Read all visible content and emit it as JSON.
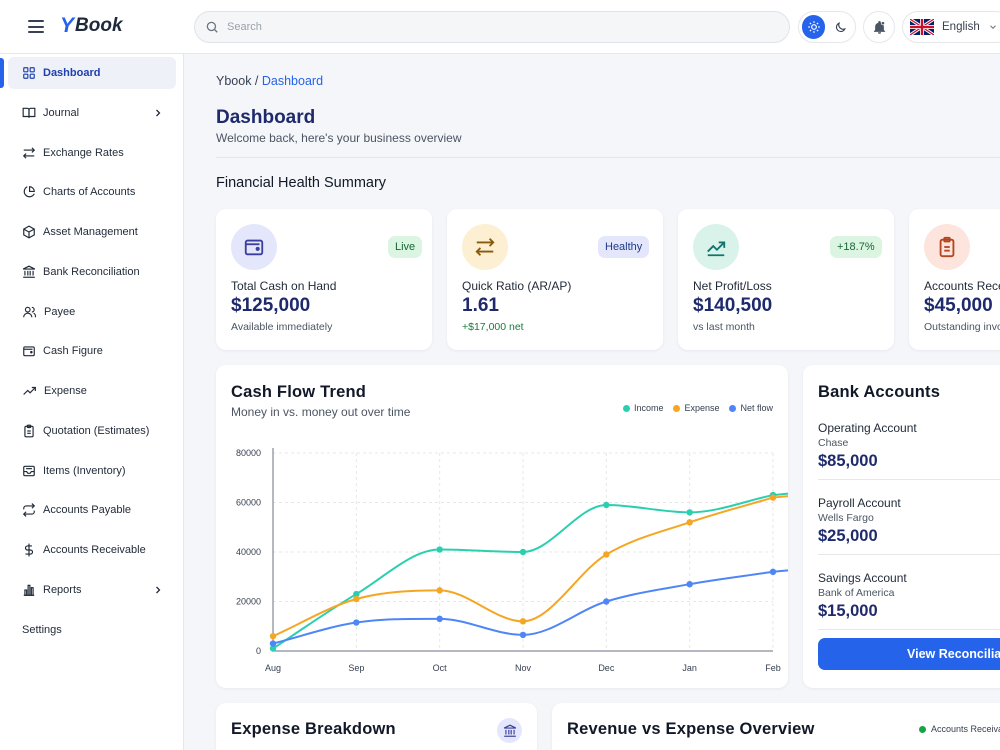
{
  "app": {
    "logo_letter": "Y",
    "logo_text": "Book"
  },
  "search": {
    "placeholder": "Search",
    "value": ""
  },
  "header": {
    "language": "English"
  },
  "sidebar": {
    "items": [
      {
        "label": "Dashboard",
        "icon": "grid-icon",
        "active": true
      },
      {
        "label": "Journal",
        "icon": "book-open-icon",
        "has_children": true
      },
      {
        "label": "Exchange Rates",
        "icon": "arrows-swap-icon"
      },
      {
        "label": "Charts of Accounts",
        "icon": "pie-chart-icon"
      },
      {
        "label": "Asset Management",
        "icon": "cube-icon"
      },
      {
        "label": "Bank Reconciliation",
        "icon": "bank-icon"
      },
      {
        "label": "Payee",
        "icon": "users-icon"
      },
      {
        "label": "Cash Figure",
        "icon": "wallet-icon"
      },
      {
        "label": "Expense",
        "icon": "trending-up-icon"
      },
      {
        "label": "Quotation (Estimates)",
        "icon": "clipboard-icon"
      },
      {
        "label": "Items (Inventory)",
        "icon": "inbox-icon"
      },
      {
        "label": "Accounts Payable",
        "icon": "repeat-icon"
      },
      {
        "label": "Accounts Receivable",
        "icon": "dollar-icon"
      },
      {
        "label": "Reports",
        "icon": "bar-chart-icon",
        "has_children": true
      },
      {
        "label": "Settings"
      }
    ]
  },
  "breadcrumb": {
    "root": "Ybook",
    "separator": " / ",
    "current": "Dashboard"
  },
  "page": {
    "title": "Dashboard",
    "subtitle": "Welcome back, here's your business overview",
    "section_title": "Financial Health Summary"
  },
  "kpis": [
    {
      "label": "Total Cash on Hand",
      "value": "$125,000",
      "sub": "Available immediately",
      "badge": "Live",
      "icon": "wallet-icon",
      "icon_bg": "#e4e7fb",
      "icon_color": "#3b3f9e",
      "badge_bg": "#dcf5e3",
      "badge_color": "#166534",
      "sub_color": "#4b5563"
    },
    {
      "label": "Quick Ratio (AR/AP)",
      "value": "1.61",
      "sub": "+$17,000 net",
      "badge": "Healthy",
      "icon": "arrows-swap-icon",
      "icon_bg": "#fcefd2",
      "icon_color": "#8a5a0b",
      "badge_bg": "#e4e7fb",
      "badge_color": "#1e3a8a",
      "sub_color": "#16803c"
    },
    {
      "label": "Net Profit/Loss",
      "value": "$140,500",
      "sub": "vs last month",
      "badge": "+18.7%",
      "icon": "trending-up-icon",
      "icon_bg": "#d9f3ea",
      "icon_color": "#0f766e",
      "badge_bg": "#dcf5e3",
      "badge_color": "#166534",
      "sub_color": "#4b5563"
    },
    {
      "label": "Accounts Receivable",
      "value": "$45,000",
      "sub": "Outstanding invoices",
      "badge": "",
      "icon": "clipboard-icon",
      "icon_bg": "#fde4dc",
      "icon_color": "#b4461f",
      "badge_bg": "#ffffff",
      "badge_color": "#111827",
      "sub_color": "#4b5563"
    }
  ],
  "cashflow": {
    "title": "Cash Flow Trend",
    "subtitle": "Money in vs. money out over time"
  },
  "chart_data": {
    "type": "line",
    "categories": [
      "Aug",
      "Sep",
      "Oct",
      "Nov",
      "Dec",
      "Jan",
      "Feb"
    ],
    "y_ticks": [
      0,
      20000,
      40000,
      60000,
      80000
    ],
    "ylim": [
      0,
      80000
    ],
    "grid": true,
    "legend_position": "top-right",
    "series": [
      {
        "name": "Income",
        "color": "#2bcfaf",
        "values": [
          1000,
          23000,
          41000,
          40000,
          59000,
          56000,
          63000
        ]
      },
      {
        "name": "Expense",
        "color": "#f5a623",
        "values": [
          6000,
          21000,
          24500,
          12000,
          39000,
          52000,
          62000
        ]
      },
      {
        "name": "Net flow",
        "color": "#4f86f7",
        "values": [
          3000,
          11500,
          13000,
          6500,
          20000,
          27000,
          32000
        ]
      }
    ]
  },
  "bank": {
    "title": "Bank Accounts",
    "accounts": [
      {
        "name": "Operating Account",
        "bank": "Chase",
        "amount": "$85,000"
      },
      {
        "name": "Payroll Account",
        "bank": "Wells Fargo",
        "amount": "$25,000"
      },
      {
        "name": "Savings Account",
        "bank": "Bank of America",
        "amount": "$15,000"
      }
    ],
    "button_label": "View Reconciliation"
  },
  "expense_breakdown": {
    "title": "Expense Breakdown",
    "icon": "bank-icon"
  },
  "revenue_expense": {
    "title": "Revenue vs Expense Overview",
    "legend_first": "Accounts Receivable",
    "legend_color": "#16a34a"
  }
}
